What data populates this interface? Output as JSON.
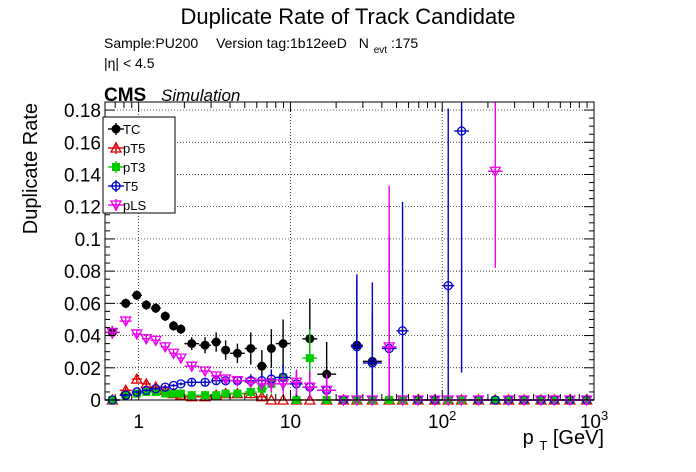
{
  "chart_data": {
    "type": "scatter",
    "title": "Duplicate Rate of Track Candidate",
    "subtitle": {
      "sample": "Sample:PU200",
      "version": "Version tag:1b12eeD",
      "nevt_prefix": "N",
      "nevt_sub": "evt",
      "nevt_value": ":175",
      "eta_cut": "|η| < 4.5"
    },
    "cms_label": "CMS",
    "cms_sublabel": "Simulation",
    "ylabel": "Duplicate Rate",
    "xlabel": {
      "main": "p",
      "sub": "T",
      "unit": " [GeV]"
    },
    "xscale": "log",
    "xlim": [
      0.6,
      1000
    ],
    "ylim": [
      0,
      0.185
    ],
    "grid": true,
    "legend_position": "top-left",
    "x_tick_labels": [
      {
        "value": 1,
        "label": "1"
      },
      {
        "value": 10,
        "label": "10"
      },
      {
        "value": 100,
        "label": "10",
        "exp": "2"
      },
      {
        "value": 1000,
        "label": "10",
        "exp": "3"
      }
    ],
    "y_tick_labels": [
      {
        "value": 0,
        "label": "0"
      },
      {
        "value": 0.02,
        "label": "0.02"
      },
      {
        "value": 0.04,
        "label": "0.04"
      },
      {
        "value": 0.06,
        "label": "0.06"
      },
      {
        "value": 0.08,
        "label": "0.08"
      },
      {
        "value": 0.1,
        "label": "0.1"
      },
      {
        "value": 0.12,
        "label": "0.12"
      },
      {
        "value": 0.14,
        "label": "0.14"
      },
      {
        "value": 0.16,
        "label": "0.16"
      },
      {
        "value": 0.18,
        "label": "0.18"
      }
    ],
    "bin_edges": [
      0.6,
      0.75,
      0.9,
      1.05,
      1.2,
      1.4,
      1.6,
      1.8,
      2.0,
      2.5,
      3.0,
      3.5,
      4.0,
      5.0,
      6.0,
      7.0,
      8.0,
      10.0,
      12.0,
      15.0,
      20.0,
      25.0,
      30.0,
      40.0,
      50.0,
      60.0,
      80.0,
      100.0,
      120.0,
      150.0,
      200.0,
      250.0,
      300.0,
      400.0,
      500.0,
      600.0,
      800.0,
      1000.0
    ],
    "series": [
      {
        "name": "TC",
        "color": "#000000",
        "marker": "filled-circle",
        "y": [
          0.042,
          0.06,
          0.065,
          0.059,
          0.057,
          0.052,
          0.046,
          0.044,
          0.035,
          0.034,
          0.036,
          0.031,
          0.029,
          0.032,
          0.021,
          0.032,
          0.035,
          0.0,
          0.038,
          0.016,
          0.0,
          0.034,
          0.024,
          0.0,
          0.0,
          0.0,
          0.0,
          0.0,
          0.0,
          0.0,
          0.0,
          0.0,
          0.0,
          0.0,
          0.0,
          0.0,
          0.0
        ],
        "err": [
          0.004,
          0.003,
          0.003,
          0.003,
          0.003,
          0.003,
          0.003,
          0.003,
          0.004,
          0.005,
          0.006,
          0.006,
          0.006,
          0.01,
          0.01,
          0.012,
          0.015,
          0.0,
          0.025,
          0.02,
          0.0,
          0.04,
          0.03,
          0.0,
          0.0,
          0.0,
          0.0,
          0.0,
          0.0,
          0.0,
          0.0,
          0.0,
          0.0,
          0.0,
          0.0,
          0.0,
          0.0
        ]
      },
      {
        "name": "pT5",
        "color": "#e00000",
        "marker": "open-triangle",
        "y": [
          0.0,
          0.006,
          0.013,
          0.01,
          0.008,
          0.006,
          0.004,
          0.003,
          0.002,
          0.002,
          0.003,
          0.004,
          0.004,
          0.004,
          0.002,
          0.0,
          0.0,
          0.0,
          0.0,
          0.0,
          0.0,
          0.0,
          0.0,
          0.0,
          0.0,
          0.0,
          0.0,
          0.0,
          0.0,
          0.0,
          0.0,
          0.0,
          0.0,
          0.0,
          0.0,
          0.0,
          0.0
        ],
        "err": [
          0.0,
          0.002,
          0.002,
          0.002,
          0.002,
          0.002,
          0.002,
          0.002,
          0.002,
          0.002,
          0.002,
          0.002,
          0.002,
          0.003,
          0.003,
          0.0,
          0.0,
          0.0,
          0.0,
          0.0,
          0.0,
          0.0,
          0.0,
          0.0,
          0.0,
          0.0,
          0.0,
          0.0,
          0.0,
          0.0,
          0.0,
          0.0,
          0.0,
          0.0,
          0.0,
          0.0,
          0.0
        ]
      },
      {
        "name": "pT3",
        "color": "#00cc00",
        "marker": "filled-square",
        "y": [
          0.0,
          0.003,
          0.004,
          0.005,
          0.005,
          0.004,
          0.004,
          0.004,
          0.003,
          0.003,
          0.003,
          0.004,
          0.004,
          0.005,
          0.007,
          0.01,
          0.014,
          0.0,
          0.026,
          0.0,
          0.0,
          0.0,
          0.0,
          0.0,
          0.0,
          0.0,
          0.0,
          0.0,
          0.0,
          0.0,
          0.0,
          0.0,
          0.0,
          0.0,
          0.0,
          0.0,
          0.0
        ],
        "err": [
          0.0,
          0.001,
          0.001,
          0.001,
          0.001,
          0.001,
          0.001,
          0.001,
          0.001,
          0.001,
          0.002,
          0.002,
          0.002,
          0.003,
          0.004,
          0.006,
          0.008,
          0.0,
          0.018,
          0.0,
          0.0,
          0.0,
          0.0,
          0.0,
          0.0,
          0.0,
          0.0,
          0.0,
          0.0,
          0.0,
          0.0,
          0.0,
          0.0,
          0.0,
          0.0,
          0.0,
          0.0
        ]
      },
      {
        "name": "T5",
        "color": "#0000cc",
        "marker": "open-circle",
        "y": [
          0.0,
          0.003,
          0.005,
          0.006,
          0.007,
          0.008,
          0.009,
          0.01,
          0.011,
          0.011,
          0.012,
          0.012,
          0.012,
          0.012,
          0.012,
          0.013,
          0.014,
          0.01,
          0.008,
          0.006,
          0.0,
          0.033,
          0.023,
          0.032,
          0.043,
          0.0,
          0.0,
          0.071,
          0.167,
          0.0,
          0.0,
          0.0,
          0.0,
          0.0,
          0.0,
          0.0,
          0.0
        ],
        "err": [
          0.0,
          0.001,
          0.001,
          0.001,
          0.001,
          0.001,
          0.001,
          0.001,
          0.002,
          0.002,
          0.002,
          0.003,
          0.003,
          0.004,
          0.005,
          0.006,
          0.008,
          0.008,
          0.01,
          0.01,
          0.0,
          0.045,
          0.05,
          0.07,
          0.08,
          0.0,
          0.0,
          0.11,
          0.15,
          0.0,
          0.0,
          0.0,
          0.0,
          0.0,
          0.0,
          0.0,
          0.0
        ]
      },
      {
        "name": "pLS",
        "color": "#ee00ee",
        "marker": "open-triangle-down",
        "y": [
          0.042,
          0.049,
          0.041,
          0.038,
          0.037,
          0.033,
          0.029,
          0.026,
          0.021,
          0.018,
          0.015,
          0.013,
          0.012,
          0.011,
          0.01,
          0.01,
          0.01,
          0.011,
          0.008,
          0.006,
          0.0,
          0.0,
          0.0,
          0.033,
          0.0,
          0.0,
          0.0,
          0.0,
          0.0,
          0.0,
          0.142,
          0.0,
          0.0,
          0.0,
          0.0,
          0.0,
          0.0
        ],
        "err": [
          0.004,
          0.003,
          0.003,
          0.003,
          0.003,
          0.003,
          0.002,
          0.002,
          0.002,
          0.002,
          0.002,
          0.002,
          0.002,
          0.003,
          0.004,
          0.005,
          0.006,
          0.008,
          0.01,
          0.01,
          0.0,
          0.0,
          0.0,
          0.1,
          0.0,
          0.0,
          0.0,
          0.0,
          0.0,
          0.0,
          0.06,
          0.0,
          0.0,
          0.0,
          0.0,
          0.0,
          0.0
        ]
      }
    ]
  }
}
